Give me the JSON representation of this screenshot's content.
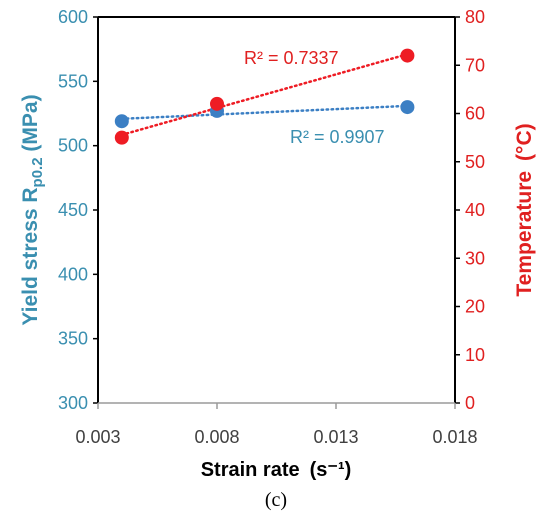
{
  "chart_data": {
    "type": "scatter",
    "panel_label": "(c)",
    "xlabel": "Strain rate",
    "xlabel_unit": "(s⁻¹)",
    "xlim": [
      0.003,
      0.018
    ],
    "xticks": [
      0.003,
      0.008,
      0.013,
      0.018
    ],
    "xtick_labels": [
      "0.003",
      "0.008",
      "0.013",
      "0.018"
    ],
    "y1": {
      "label_main": "Yield stress R",
      "label_sub": "p0.2",
      "label_unit": " (MPa)",
      "lim": [
        300,
        600
      ],
      "ticks": [
        300,
        350,
        400,
        450,
        500,
        550,
        600
      ],
      "color": "#3a8fb0",
      "marker_color": "#3b7fc4"
    },
    "y2": {
      "label": "Temperature",
      "label_unit": "(°C)",
      "lim": [
        0,
        80
      ],
      "ticks": [
        0,
        10,
        20,
        30,
        40,
        50,
        60,
        70,
        80
      ],
      "color": "#e02020",
      "marker_color": "#ee1c24"
    },
    "series": [
      {
        "axis": "y1",
        "x": [
          0.004,
          0.008,
          0.016
        ],
        "y": [
          519,
          527,
          530
        ],
        "trendline": {
          "type": "linear",
          "r2_label": "R² = 0.9907"
        }
      },
      {
        "axis": "y2",
        "x": [
          0.004,
          0.008,
          0.016
        ],
        "y": [
          55,
          62,
          72
        ],
        "trendline": {
          "type": "linear",
          "r2_label": "R² = 0.7337"
        }
      }
    ]
  }
}
